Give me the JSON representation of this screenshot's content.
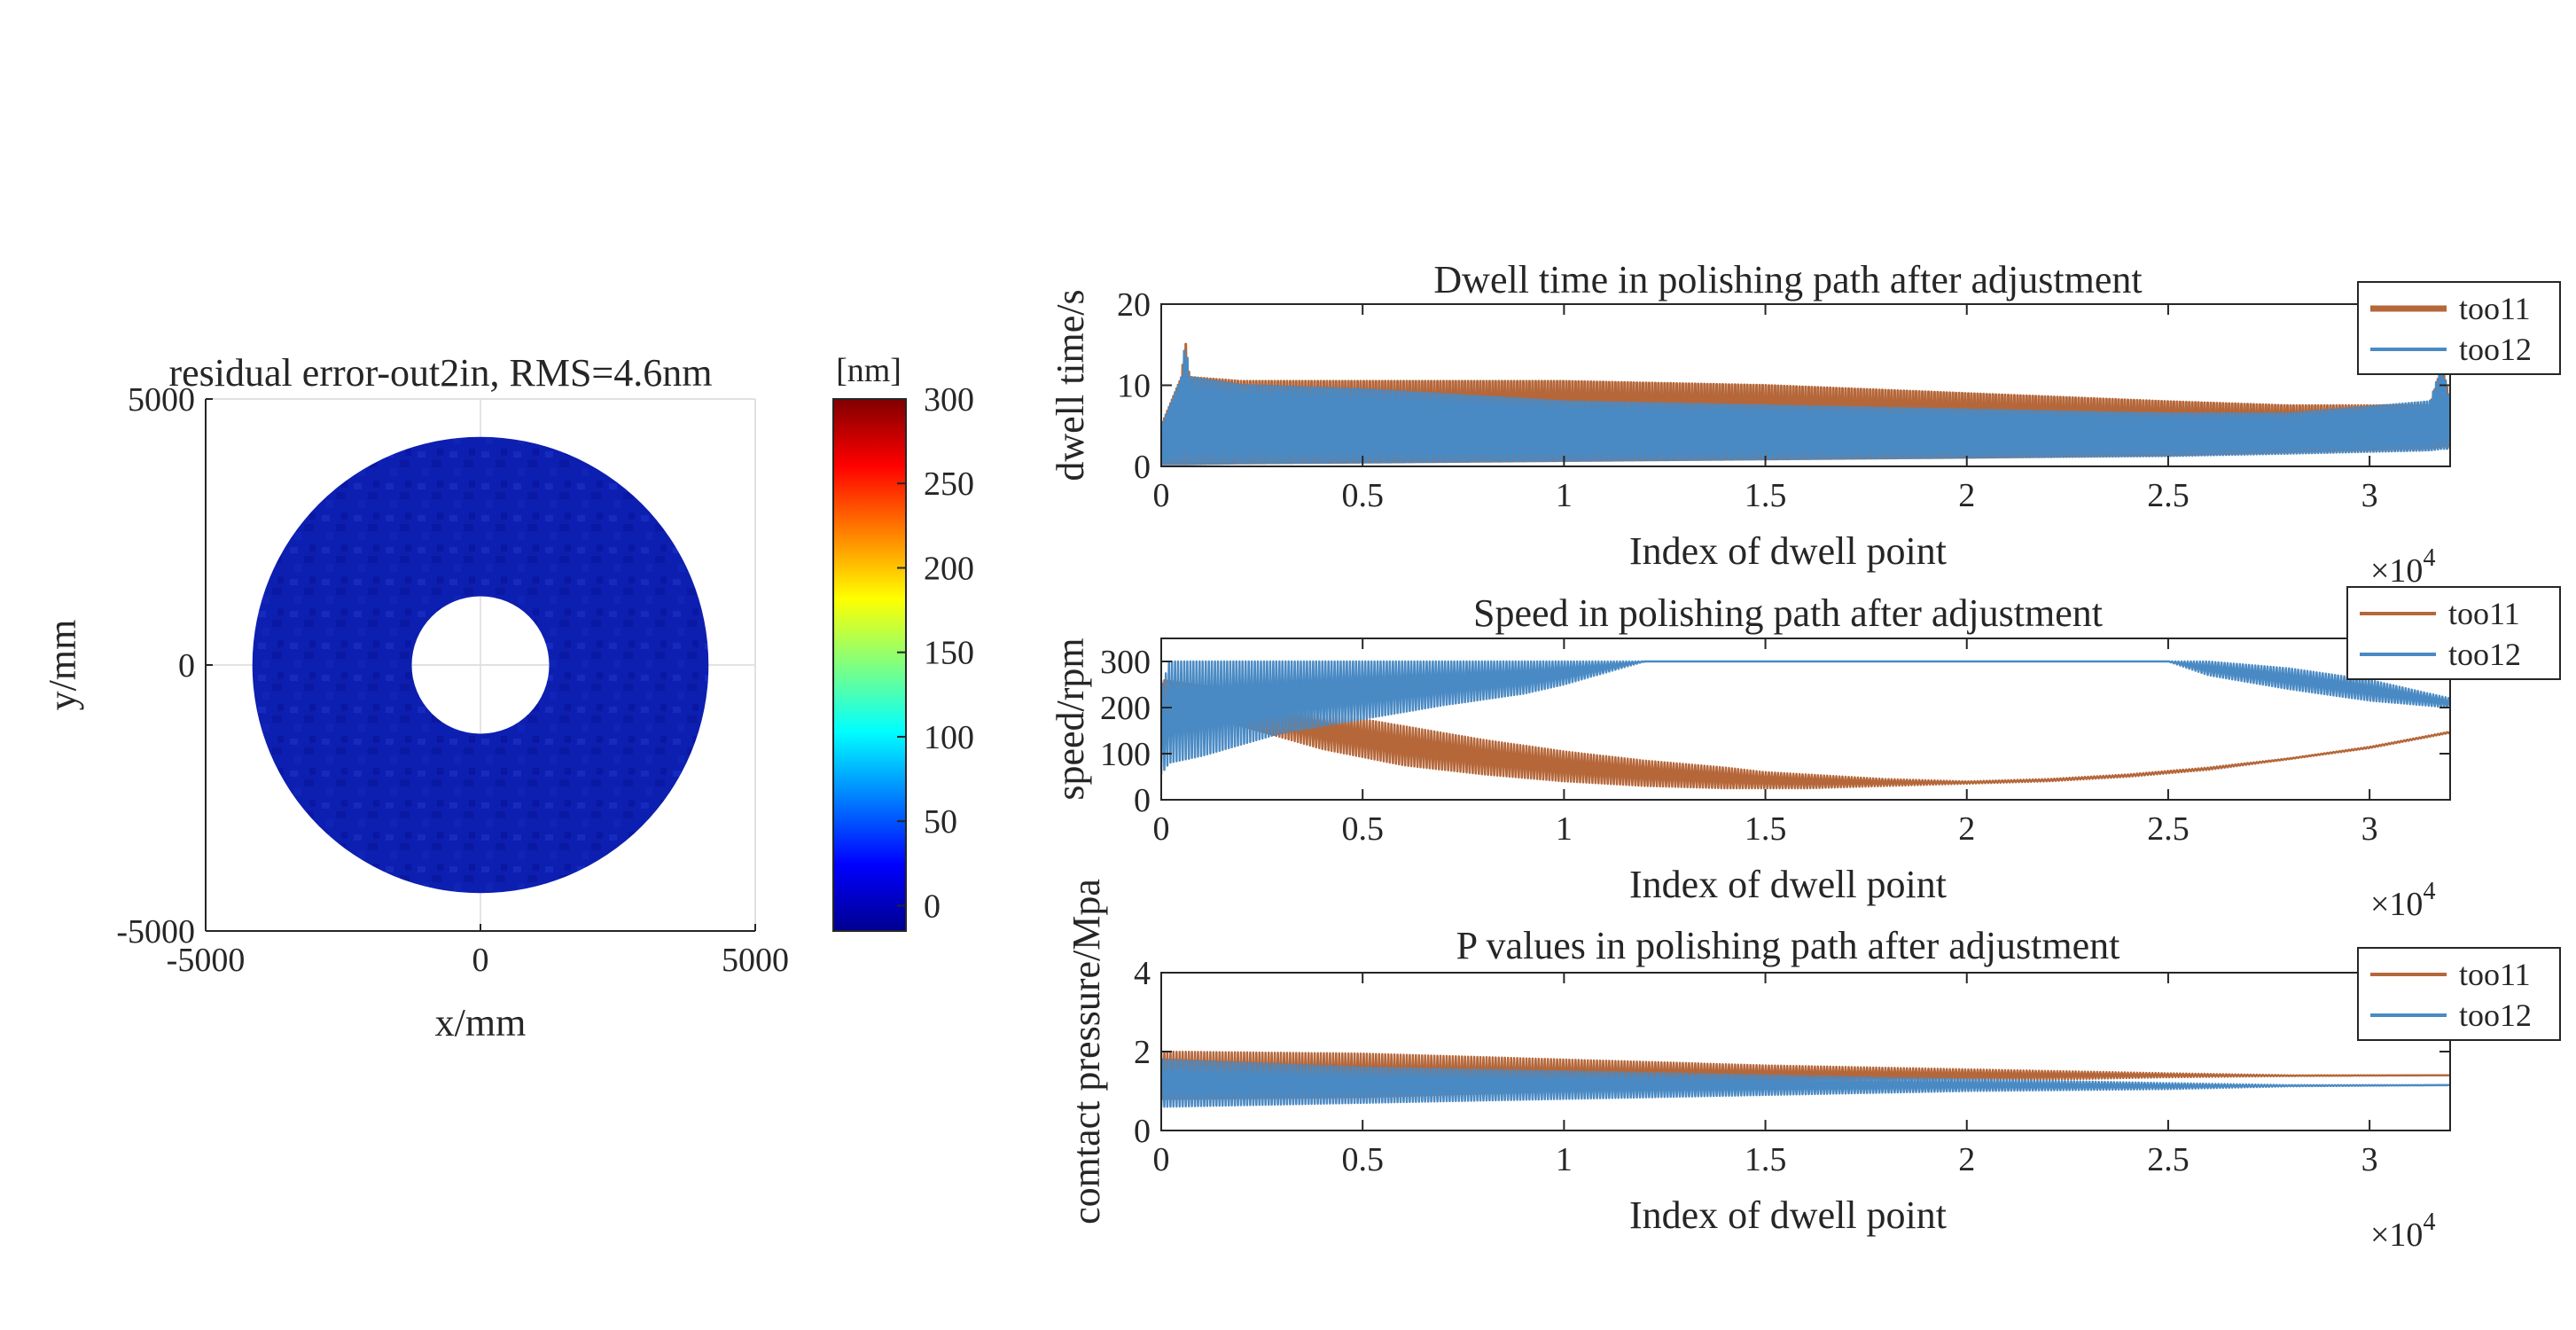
{
  "chart_data": [
    {
      "type": "heatmap",
      "title": "residual error-out2in, RMS=4.6nm",
      "xlabel": "x/mm",
      "ylabel": "y/mm",
      "xlim": [
        -5000,
        5000
      ],
      "ylim": [
        -5000,
        5000
      ],
      "xticks": [
        "-5000",
        "0",
        "5000"
      ],
      "yticks": [
        "-5000",
        "0",
        "5000"
      ],
      "grid": true,
      "shape": "annulus",
      "outer_radius": 4150,
      "inner_radius": 1250,
      "rms_nm": 4.6,
      "colorbar": {
        "label": "[nm]",
        "range": [
          -15,
          300
        ],
        "ticks": [
          "0",
          "50",
          "100",
          "150",
          "200",
          "250",
          "300"
        ],
        "colormap": "jet"
      },
      "field_color": "#0d1fb0"
    },
    {
      "type": "line",
      "title": "Dwell time in polishing path after adjustment",
      "xlabel": "Index of dwell point",
      "ylabel": "dwell time/s",
      "x_exponent": "×10",
      "x_exponent_power": "4",
      "xlim": [
        0,
        32000
      ],
      "ylim": [
        0,
        20
      ],
      "xticks": [
        "0",
        "0.5",
        "1",
        "1.5",
        "2",
        "2.5",
        "3"
      ],
      "yticks": [
        "0",
        "10",
        "20"
      ],
      "legend": "top-right",
      "series": [
        {
          "name": "too11",
          "color": "#b5673a",
          "envelope_x": [
            0,
            500,
            600,
            700,
            2000,
            5000,
            10000,
            15000,
            20000,
            25000,
            28000,
            31500,
            31800,
            32000
          ],
          "max": [
            5,
            11,
            15.5,
            11,
            10.5,
            10.5,
            10.5,
            10,
            9,
            8,
            7.5,
            7.5,
            12.5,
            8
          ],
          "min": [
            0.3,
            0.3,
            0.3,
            0.3,
            0.4,
            0.5,
            0.7,
            0.9,
            1.1,
            1.4,
            1.8,
            2.3,
            2.5,
            2.5
          ]
        },
        {
          "name": "too12",
          "color": "#4a8ac4",
          "envelope_x": [
            0,
            500,
            600,
            700,
            2000,
            5000,
            10000,
            15000,
            20000,
            25000,
            28000,
            31500,
            31800,
            32000
          ],
          "max": [
            5,
            11,
            15.5,
            11,
            10,
            9.5,
            8,
            7.5,
            7,
            6.5,
            6.5,
            8,
            12.5,
            8
          ],
          "min": [
            0.3,
            0.3,
            0.3,
            0.3,
            0.4,
            0.5,
            0.7,
            0.9,
            1.1,
            1.3,
            1.6,
            2,
            2.2,
            2.2
          ]
        }
      ]
    },
    {
      "type": "line",
      "title": "Speed in polishing path after adjustment",
      "xlabel": "Index of dwell point",
      "ylabel": "speed/rpm",
      "x_exponent": "×10",
      "x_exponent_power": "4",
      "xlim": [
        0,
        32000
      ],
      "ylim": [
        0,
        350
      ],
      "xticks": [
        "0",
        "0.5",
        "1",
        "1.5",
        "2",
        "2.5",
        "3"
      ],
      "yticks": [
        "0",
        "100",
        "200",
        "300"
      ],
      "legend": "top-right",
      "series": [
        {
          "name": "too11",
          "color": "#b5673a",
          "envelope_x": [
            0,
            2000,
            4000,
            6000,
            8000,
            10000,
            12000,
            14000,
            15000,
            16000,
            18000,
            20000,
            22000,
            24000,
            26000,
            28000,
            30000,
            32000
          ],
          "max": [
            260,
            235,
            190,
            160,
            130,
            105,
            85,
            70,
            60,
            55,
            45,
            40,
            45,
            55,
            70,
            90,
            115,
            148
          ],
          "min": [
            200,
            160,
            110,
            75,
            55,
            40,
            30,
            25,
            25,
            25,
            30,
            35,
            40,
            50,
            65,
            88,
            112,
            145
          ]
        },
        {
          "name": "too12",
          "color": "#4a8ac4",
          "envelope_x": [
            0,
            200,
            1000,
            3000,
            5000,
            7000,
            9000,
            10000,
            11000,
            12000,
            25000,
            26000,
            28000,
            30000,
            32000
          ],
          "max": [
            240,
            300,
            300,
            300,
            300,
            300,
            300,
            300,
            300,
            300,
            300,
            300,
            285,
            260,
            220
          ],
          "min": [
            55,
            80,
            95,
            145,
            175,
            205,
            230,
            250,
            275,
            300,
            300,
            270,
            240,
            215,
            200
          ]
        }
      ]
    },
    {
      "type": "line",
      "title": "P values in polishing path after adjustment",
      "xlabel": "Index of dwell point",
      "ylabel": "comtact pressure/Mpa",
      "x_exponent": "×10",
      "x_exponent_power": "4",
      "xlim": [
        0,
        32000
      ],
      "ylim": [
        0,
        4
      ],
      "xticks": [
        "0",
        "0.5",
        "1",
        "1.5",
        "2",
        "2.5",
        "3"
      ],
      "yticks": [
        "0",
        "2",
        "4"
      ],
      "legend": "top-right",
      "series": [
        {
          "name": "too11",
          "color": "#b5673a",
          "envelope_x": [
            0,
            5000,
            10000,
            15000,
            20000,
            25000,
            28000,
            32000
          ],
          "max": [
            2,
            1.95,
            1.8,
            1.65,
            1.55,
            1.45,
            1.4,
            1.4
          ],
          "min": [
            0.8,
            0.85,
            1,
            1.15,
            1.25,
            1.35,
            1.38,
            1.4
          ]
        },
        {
          "name": "too12",
          "color": "#4a8ac4",
          "envelope_x": [
            0,
            5000,
            10000,
            15000,
            20000,
            25000,
            28000,
            32000
          ],
          "max": [
            1.8,
            1.6,
            1.5,
            1.4,
            1.3,
            1.2,
            1.15,
            1.15
          ],
          "min": [
            0.6,
            0.7,
            0.8,
            0.9,
            1.0,
            1.05,
            1.12,
            1.15
          ]
        }
      ]
    }
  ]
}
